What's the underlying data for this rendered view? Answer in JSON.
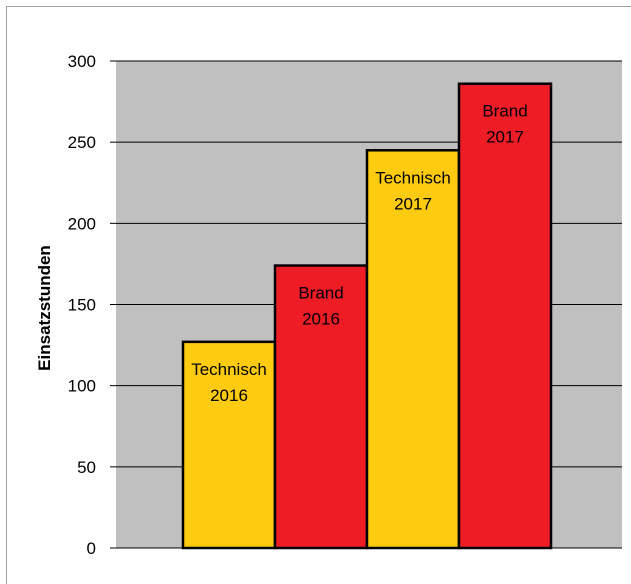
{
  "chart_data": {
    "type": "bar",
    "title": "",
    "xlabel": "",
    "ylabel": "Einsatzstunden",
    "ylim": [
      0,
      300
    ],
    "yticks": [
      0,
      50,
      100,
      150,
      200,
      250,
      300
    ],
    "grid": true,
    "legend": "none",
    "plot_background": "#c0c0c0",
    "bars": [
      {
        "line1": "Technisch",
        "line2": "2016",
        "value": 127,
        "color": "#fecb10",
        "label_color": "#000000"
      },
      {
        "line1": "Brand",
        "line2": "2016",
        "value": 174,
        "color": "#ee1c24",
        "label_color": "#000000"
      },
      {
        "line1": "Technisch",
        "line2": "2017",
        "value": 245,
        "color": "#fecb10",
        "label_color": "#000000"
      },
      {
        "line1": "Brand",
        "line2": "2017",
        "value": 286,
        "color": "#ee1c24",
        "label_color": "#000000"
      }
    ]
  }
}
